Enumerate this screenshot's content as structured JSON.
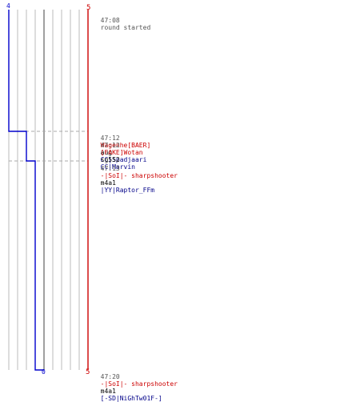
{
  "scores": {
    "blue_start": "4",
    "red_start": "5",
    "blue_end": "0",
    "red_end": "5"
  },
  "colors": {
    "blue_team": "#0000cc",
    "red_team": "#cc0000",
    "grid": "#bbbbbb",
    "center": "#777777",
    "dash": "#aaaaaa"
  },
  "events": [
    {
      "time": "47:08",
      "text": "round started"
    },
    {
      "time": "47:12",
      "killer": "Wagenhe[BAER]",
      "weapon": "aug",
      "victim": "CC|Spadjaari"
    },
    {
      "time": "47:12",
      "killer": "[FAKE]Wotan",
      "weapon": "sg552",
      "victim": "CC|Marvin"
    },
    {
      "time": "47:13",
      "killer": "-|SoI|- sharpshooter",
      "weapon": "m4a1",
      "victim": "|YY|Raptor_FFm"
    },
    {
      "time": "47:20",
      "killer": "-|SoI|- sharpshooter",
      "weapon": "m4a1",
      "victim": "[-SD|NiGhTw01F-]"
    }
  ]
}
